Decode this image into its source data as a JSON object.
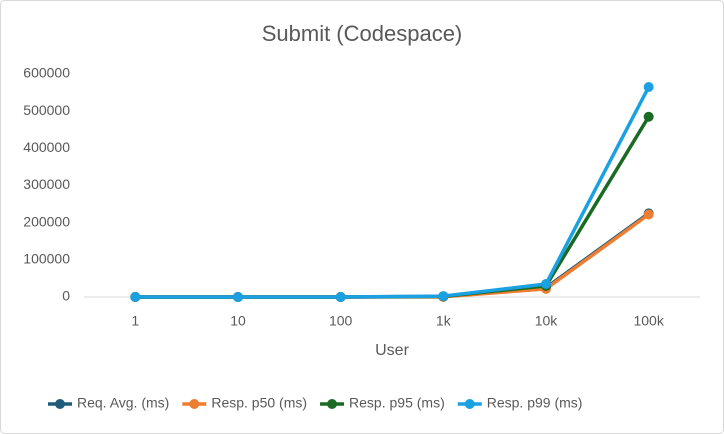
{
  "chart_data": {
    "type": "line",
    "title": "Submit (Codespace)",
    "x_label": "User",
    "categories": [
      "1",
      "10",
      "100",
      "1k",
      "10k",
      "100k"
    ],
    "series": [
      {
        "name": "Req. Avg. (ms)",
        "color": "#1f5c7a",
        "values": [
          0,
          0,
          0,
          1000,
          25000,
          225000
        ]
      },
      {
        "name": "Resp. p50 (ms)",
        "color": "#ed7d31",
        "values": [
          0,
          0,
          0,
          500,
          22000,
          222000
        ]
      },
      {
        "name": "Resp. p95 (ms)",
        "color": "#196b24",
        "values": [
          0,
          0,
          0,
          1500,
          30000,
          485000
        ]
      },
      {
        "name": "Resp. p99 (ms)",
        "color": "#1ba1e2",
        "values": [
          0,
          0,
          0,
          2500,
          35000,
          565000
        ]
      }
    ],
    "ylim": [
      0,
      600000
    ],
    "yticks": [
      0,
      100000,
      200000,
      300000,
      400000,
      500000,
      600000
    ],
    "grid": false,
    "legend": "bottom"
  }
}
